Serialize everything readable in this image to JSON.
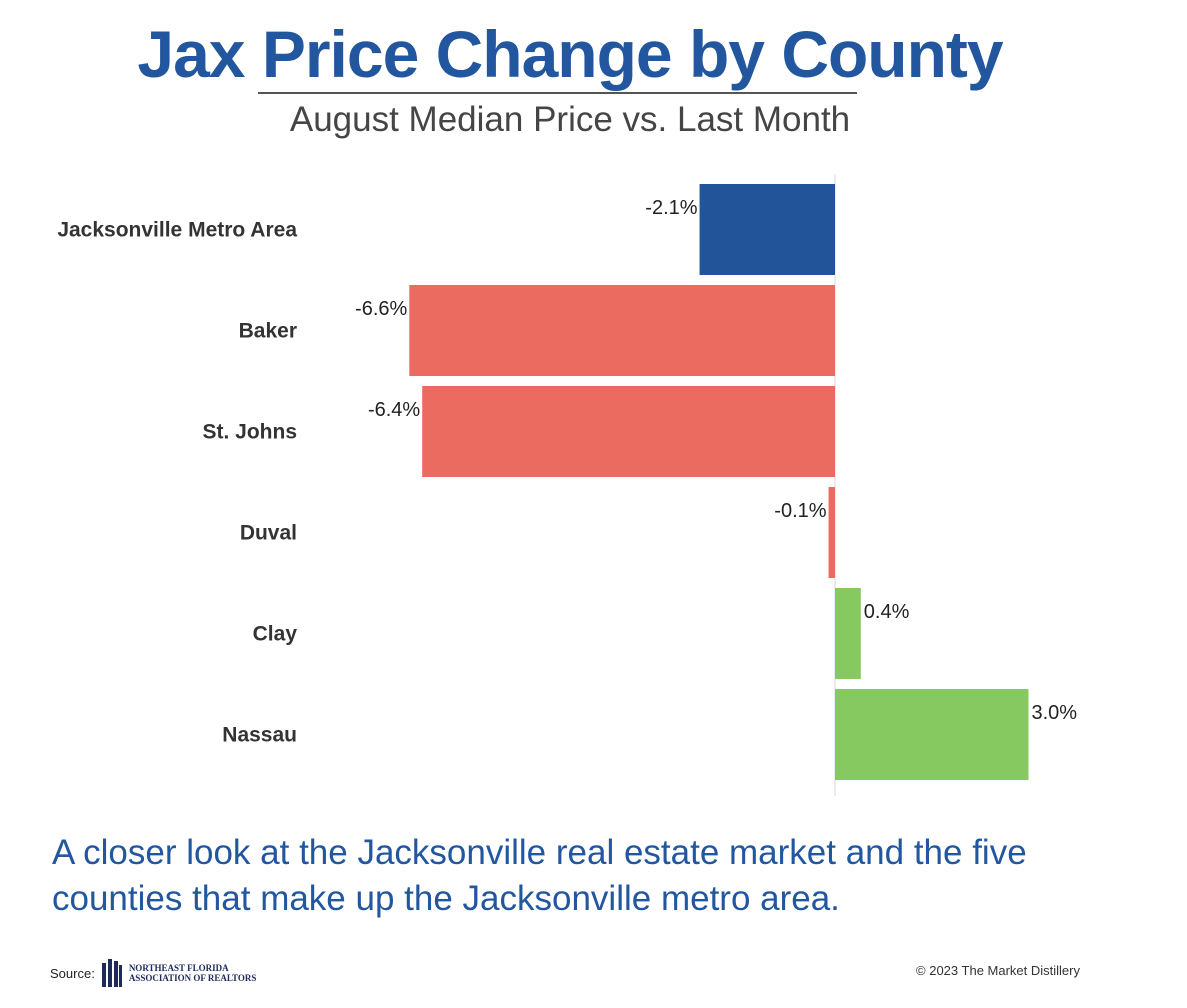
{
  "header": {
    "title": "Jax Price Change by County",
    "subtitle": "August Median Price vs. Last Month"
  },
  "chart_data": {
    "type": "bar",
    "orientation": "horizontal",
    "categories": [
      "Jacksonville Metro Area",
      "Baker",
      "St. Johns",
      "Duval",
      "Clay",
      "Nassau"
    ],
    "values": [
      -2.1,
      -6.6,
      -6.4,
      -0.1,
      0.4,
      3.0
    ],
    "value_labels": [
      "-2.1%",
      "-6.6%",
      "-6.4%",
      "-0.1%",
      "0.4%",
      "3.0%"
    ],
    "colors": [
      "#22549a",
      "#ec6b61",
      "#ec6b61",
      "#ec6b61",
      "#86c961",
      "#86c961"
    ],
    "title": "Jax Price Change by County",
    "subtitle": "August Median Price vs. Last Month",
    "xlabel": "",
    "ylabel": "",
    "xlim": [
      -6.6,
      3.0
    ],
    "grid": false,
    "legend": "none"
  },
  "caption": "A closer look at the Jacksonville real estate market and the five counties that make up the Jacksonville metro area.",
  "footer": {
    "source_label": "Source:",
    "logo_line1": "Northeast Florida",
    "logo_line2": "Association of Realtors",
    "copyright": "© 2023 The Market Distillery"
  }
}
